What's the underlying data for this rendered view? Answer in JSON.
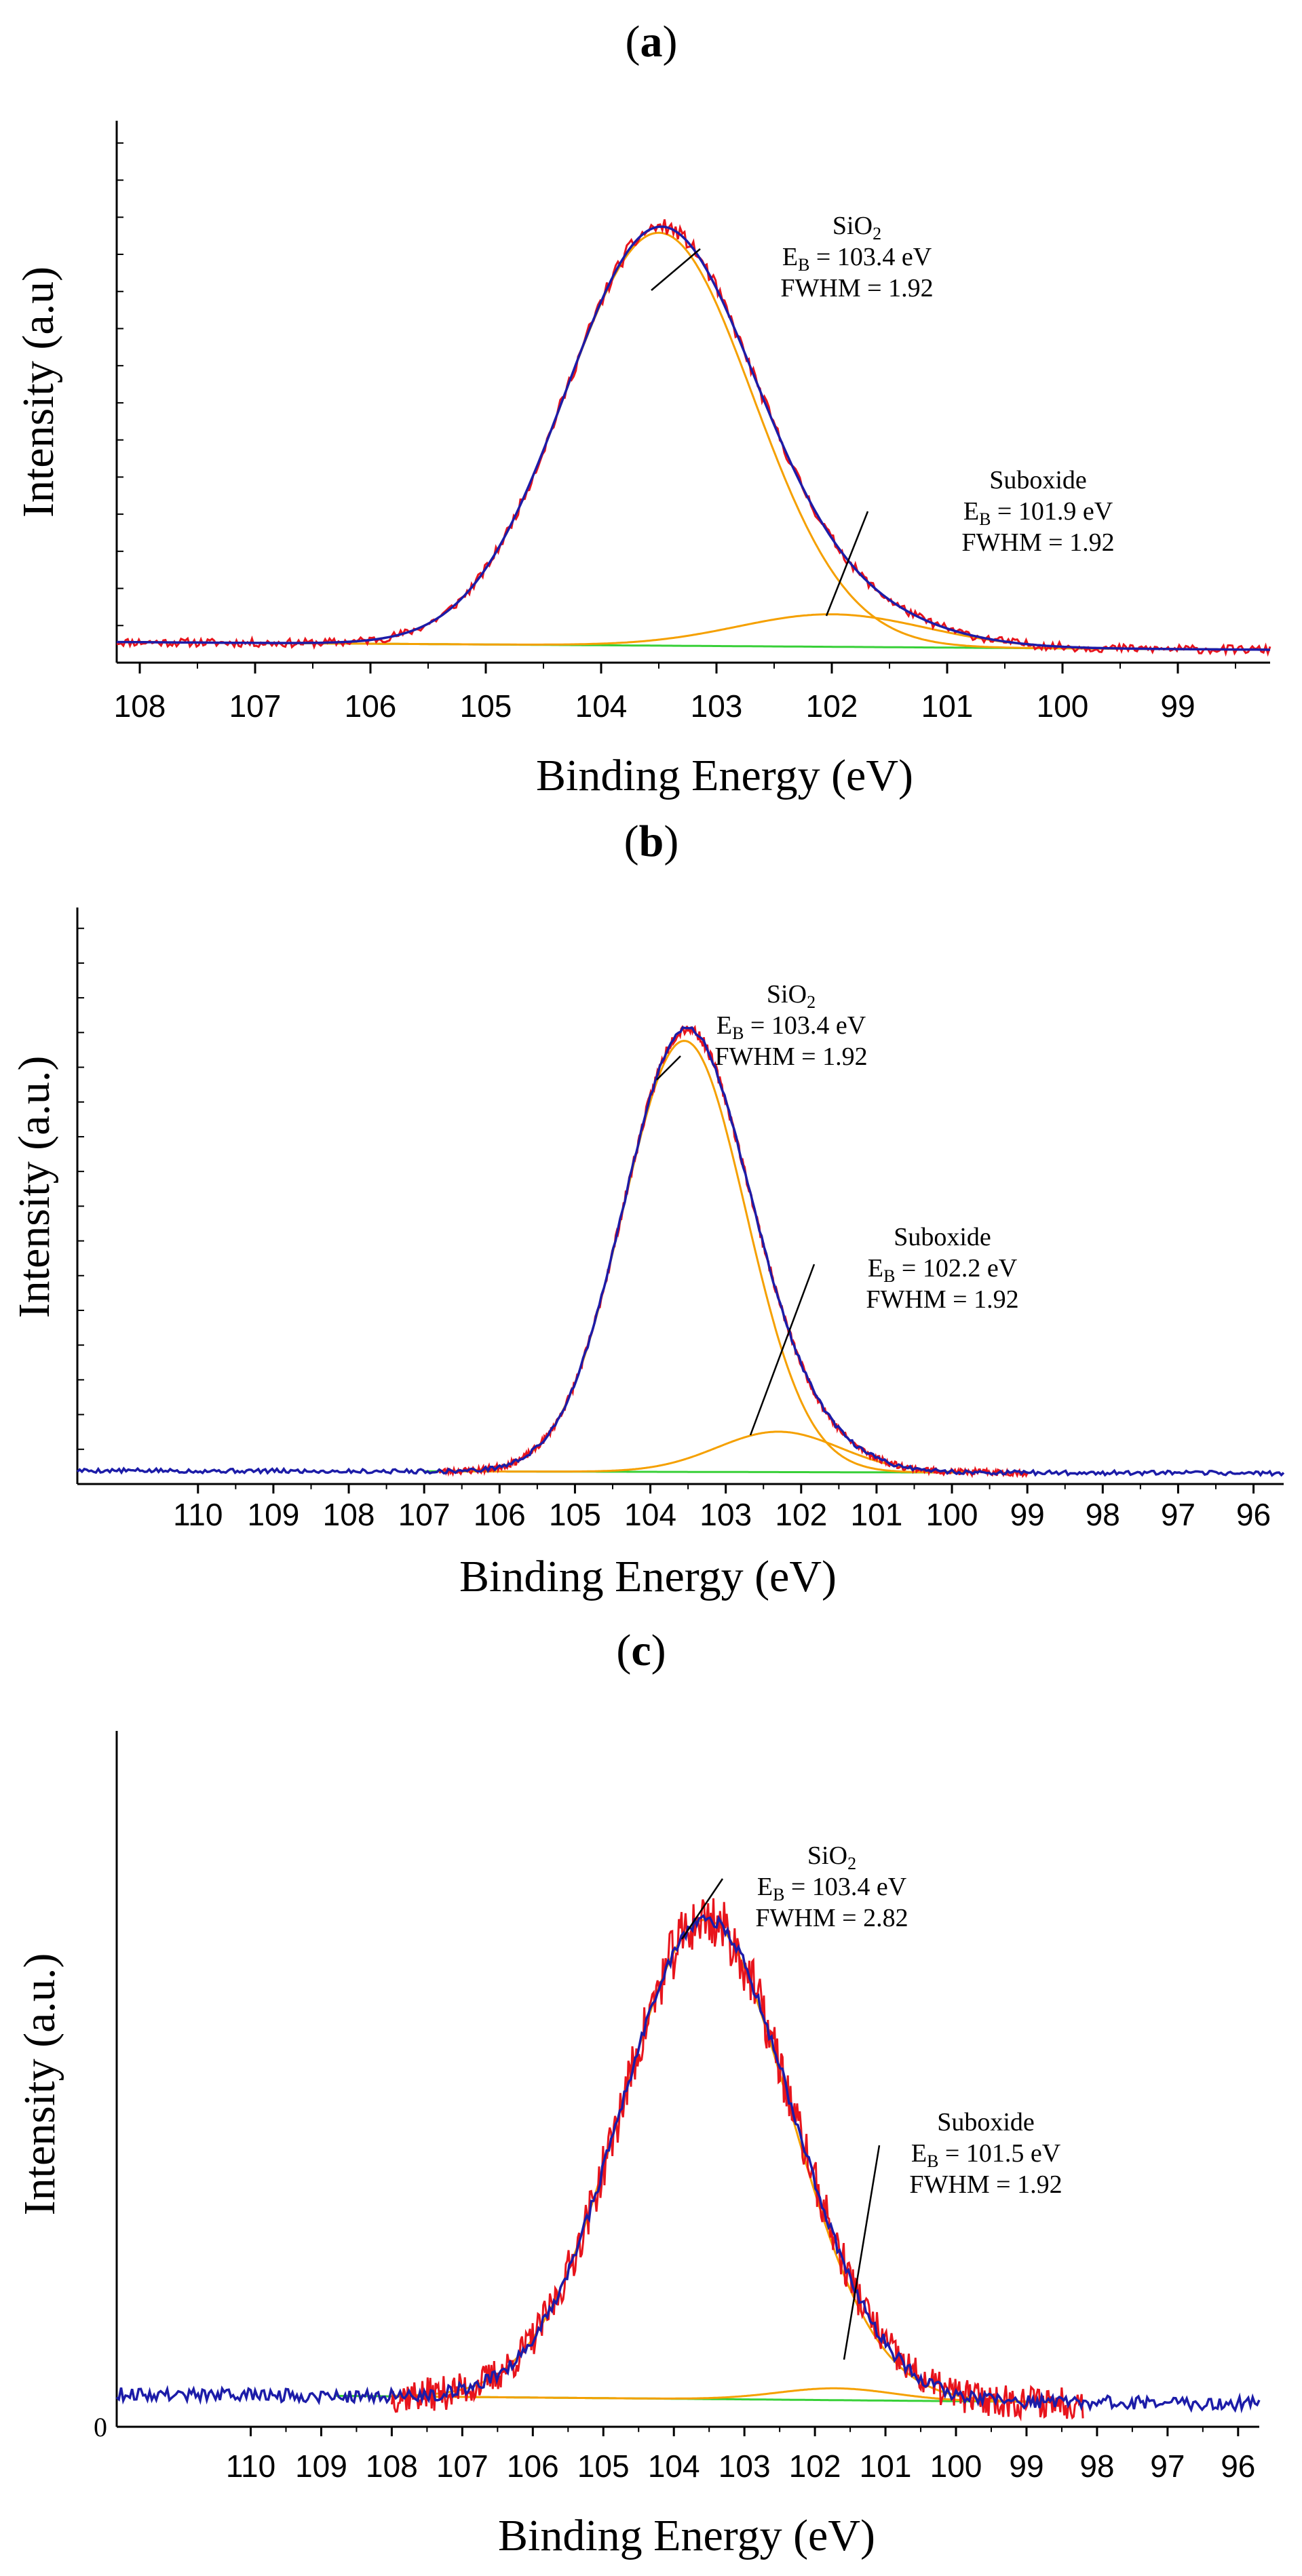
{
  "colors": {
    "measured": "#e8141c",
    "envelope": "#1c1ca8",
    "component": "#f5a000",
    "background": "#38d038",
    "leader": "#000000"
  },
  "chart_data": [
    {
      "type": "line",
      "panel_label": "(a)",
      "xlabel": "Binding Energy (eV)",
      "ylabel": "Intensity  (a.u)",
      "xlim": [
        108.2,
        98.2
      ],
      "ylim": [
        0,
        1.05
      ],
      "x_ticks": [
        "108",
        "107",
        "106",
        "105",
        "104",
        "103",
        "102",
        "101",
        "100",
        "99"
      ],
      "series": [
        {
          "name": "measured",
          "kind": "sum",
          "noise": 0.008,
          "noise_seed": 11
        },
        {
          "name": "envelope",
          "kind": "sum"
        },
        {
          "name": "SiO2 component",
          "kind": "peak",
          "peak": 0
        },
        {
          "name": "Suboxide component",
          "kind": "peak",
          "peak": 1
        },
        {
          "name": "background",
          "kind": "background"
        }
      ],
      "baseline": [
        0.04,
        0.025
      ],
      "peaks": [
        {
          "label_main": "SiO",
          "label_sub": "2",
          "eb_prefix": "E",
          "eb_sub": "B",
          "eb_text": " = 103.4 eV",
          "fwhm_text": "FWHM = 1.92",
          "center": 103.5,
          "height": 0.8,
          "width": 1.92
        },
        {
          "label_main": "Suboxide",
          "label_sub": "",
          "eb_prefix": "E",
          "eb_sub": "B",
          "eb_text": " = 101.9 eV",
          "fwhm_text": "FWHM = 1.92",
          "center": 102.0,
          "height": 0.063,
          "width": 1.92
        }
      ]
    },
    {
      "type": "line",
      "panel_label": "(b)",
      "xlabel": "Binding Energy (eV)",
      "ylabel": "Intensity  (a.u.)",
      "xlim": [
        111.6,
        95.6
      ],
      "ylim": [
        0,
        1.07
      ],
      "x_ticks": [
        "110",
        "109",
        "108",
        "107",
        "106",
        "105",
        "104",
        "103",
        "102",
        "101",
        "100",
        "99",
        "98",
        "97",
        "96"
      ],
      "series": [
        {
          "name": "measured",
          "kind": "sum",
          "noise": 0.006,
          "noise_seed": 23,
          "xrange": [
            106.8,
            99.0
          ]
        },
        {
          "name": "envelope",
          "kind": "sum",
          "noise": 0.004,
          "noise_seed": 5
        },
        {
          "name": "SiO2 component",
          "kind": "peak",
          "peak": 0,
          "xrange": [
            106.8,
            99.8
          ]
        },
        {
          "name": "Suboxide component",
          "kind": "peak",
          "peak": 1,
          "xrange": [
            106.8,
            99.8
          ]
        },
        {
          "name": "background",
          "kind": "background",
          "xrange": [
            107.0,
            100.0
          ]
        }
      ],
      "baseline": [
        0.025,
        0.02
      ],
      "peaks": [
        {
          "label_main": "SiO",
          "label_sub": "2",
          "eb_prefix": "E",
          "eb_sub": "B",
          "eb_text": " = 103.4 eV",
          "fwhm_text": "FWHM = 1.92",
          "center": 103.55,
          "height": 0.8,
          "width": 1.92
        },
        {
          "label_main": "Suboxide",
          "label_sub": "",
          "eb_prefix": "E",
          "eb_sub": "B",
          "eb_text": " = 102.2 eV",
          "fwhm_text": "FWHM = 1.92",
          "center": 102.3,
          "height": 0.075,
          "width": 1.92
        }
      ]
    },
    {
      "type": "line",
      "panel_label": "(c)",
      "xlabel": "Binding Energy (eV)",
      "ylabel": "Intensity  (a.u.)",
      "xlim": [
        111.9,
        95.7
      ],
      "ylim": [
        0,
        1.06
      ],
      "y_origin_label": "0",
      "x_ticks": [
        "110",
        "109",
        "108",
        "107",
        "106",
        "105",
        "104",
        "103",
        "102",
        "101",
        "100",
        "99",
        "98",
        "97",
        "96"
      ],
      "series": [
        {
          "name": "measured",
          "kind": "sum",
          "noise": 0.025,
          "noise_seed": 37,
          "xrange": [
            108.0,
            98.2
          ]
        },
        {
          "name": "envelope",
          "kind": "sum",
          "noise": 0.01,
          "noise_seed": 9
        },
        {
          "name": "SiO2 component",
          "kind": "peak",
          "peak": 0,
          "xrange": [
            108.0,
            98.6
          ]
        },
        {
          "name": "Suboxide component",
          "kind": "peak",
          "peak": 1,
          "xrange": [
            108.0,
            98.6
          ]
        },
        {
          "name": "background",
          "kind": "background",
          "xrange": [
            108.8,
            98.6
          ]
        }
      ],
      "baseline": [
        0.05,
        0.035
      ],
      "peaks": [
        {
          "label_main": "SiO",
          "label_sub": "2",
          "eb_prefix": "E",
          "eb_sub": "B",
          "eb_text": " = 103.4 eV",
          "fwhm_text": "FWHM = 2.82",
          "center": 103.55,
          "height": 0.73,
          "width": 2.82
        },
        {
          "label_main": "Suboxide",
          "label_sub": "",
          "eb_prefix": "E",
          "eb_sub": "B",
          "eb_text": " = 101.5 eV",
          "fwhm_text": "FWHM = 1.92",
          "center": 101.7,
          "height": 0.018,
          "width": 1.92
        }
      ]
    }
  ]
}
